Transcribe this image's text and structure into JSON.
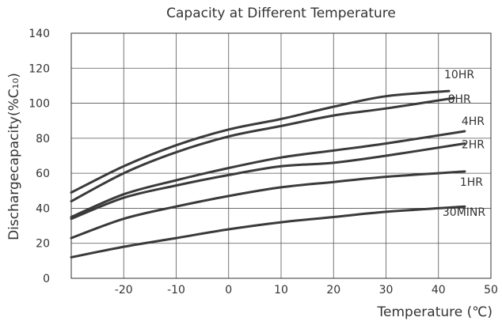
{
  "chart_data": {
    "type": "line",
    "title": "Capacity at Different Temperature",
    "xlabel": "Temperature (℃)",
    "ylabel": "Dischargecapacity(%C₁₀)",
    "xlim": [
      -30,
      50
    ],
    "ylim": [
      0,
      140
    ],
    "x_ticks": [
      -20,
      -10,
      0,
      10,
      20,
      30,
      40,
      50
    ],
    "y_ticks": [
      0,
      20,
      40,
      60,
      80,
      100,
      120,
      140
    ],
    "grid": true,
    "line_color": "#3a3a3a",
    "series": [
      {
        "name": "10HR",
        "x": [
          -30,
          -20,
          -10,
          0,
          10,
          20,
          30,
          42
        ],
        "y": [
          49,
          64,
          76,
          85,
          91,
          98,
          104,
          107
        ]
      },
      {
        "name": "8HR",
        "x": [
          -30,
          -20,
          -10,
          0,
          10,
          20,
          30,
          43
        ],
        "y": [
          44,
          60,
          72,
          81,
          87,
          93,
          97,
          103
        ]
      },
      {
        "name": "4HR",
        "x": [
          -30,
          -20,
          -10,
          0,
          10,
          20,
          30,
          45
        ],
        "y": [
          35,
          48,
          56,
          63,
          69,
          73,
          77,
          84
        ]
      },
      {
        "name": "2HR",
        "x": [
          -30,
          -20,
          -10,
          0,
          10,
          20,
          30,
          45
        ],
        "y": [
          34,
          46,
          53,
          59,
          64,
          66,
          70,
          77
        ]
      },
      {
        "name": "1HR",
        "x": [
          -30,
          -20,
          -10,
          0,
          10,
          20,
          30,
          45
        ],
        "y": [
          23,
          34,
          41,
          47,
          52,
          55,
          58,
          61
        ]
      },
      {
        "name": "30MINR",
        "x": [
          -30,
          -20,
          -10,
          0,
          10,
          20,
          30,
          45
        ],
        "y": [
          12,
          18,
          23,
          28,
          32,
          35,
          38,
          41
        ]
      }
    ]
  }
}
